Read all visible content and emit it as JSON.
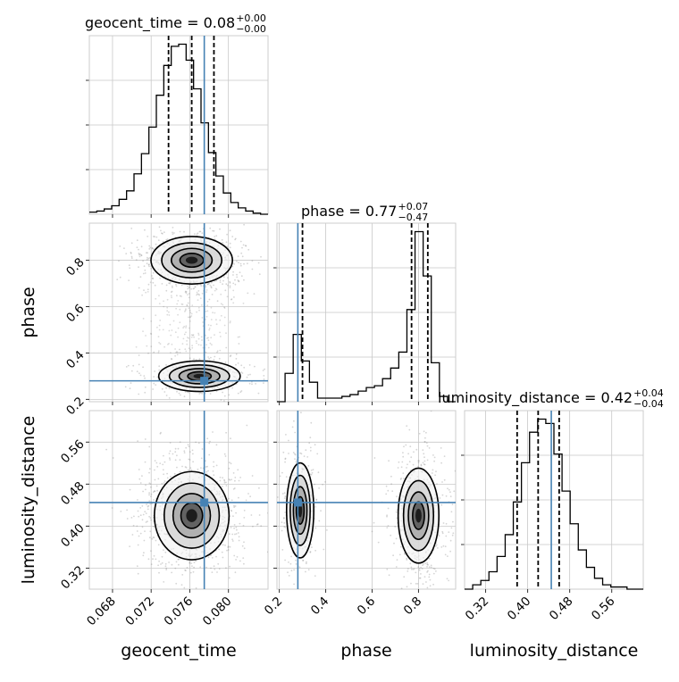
{
  "chart_data": {
    "type": "corner",
    "parameters": [
      "geocent_time",
      "phase",
      "luminosity_distance"
    ],
    "truths": {
      "geocent_time": 0.0775,
      "phase": 0.28,
      "luminosity_distance": 0.445
    },
    "panel_titles": [
      {
        "param": "geocent_time",
        "text": "geocent_time = 0.08",
        "plus": "+0.00",
        "minus": "−0.00"
      },
      {
        "param": "phase",
        "text": "phase = 0.77",
        "plus": "+0.07",
        "minus": "−0.47"
      },
      {
        "param": "luminosity_distance",
        "text": "luminosity_distance = 0.42",
        "plus": "+0.04",
        "minus": "−0.04"
      }
    ],
    "axes": {
      "geocent_time": {
        "label": "geocent_time",
        "range": [
          0.0656,
          0.0841
        ],
        "ticks": [
          0.068,
          0.072,
          0.076,
          0.08
        ],
        "tick_labels": [
          "0.068",
          "0.072",
          "0.076",
          "0.080"
        ]
      },
      "phase": {
        "label": "phase",
        "range": [
          0.19,
          0.96
        ],
        "ticks": [
          0.2,
          0.4,
          0.6,
          0.8
        ],
        "tick_labels": [
          "0.2",
          "0.4",
          "0.6",
          "0.8"
        ]
      },
      "luminosity_distance": {
        "label": "luminosity_distance",
        "range": [
          0.28,
          0.62
        ],
        "ticks": [
          0.32,
          0.4,
          0.48,
          0.56
        ],
        "tick_labels": [
          "0.32",
          "0.40",
          "0.48",
          "0.56"
        ]
      }
    },
    "histograms": {
      "geocent_time": {
        "edges_start": 0.0656,
        "edges_end": 0.0841,
        "counts": [
          2,
          3,
          5,
          8,
          14,
          22,
          38,
          57,
          82,
          112,
          140,
          158,
          160,
          145,
          118,
          86,
          58,
          36,
          20,
          11,
          6,
          3,
          1,
          0
        ],
        "quantiles": [
          0.0738,
          0.0762,
          0.0785
        ]
      },
      "phase": {
        "edges_start": 0.19,
        "edges_end": 0.96,
        "counts": [
          0,
          16,
          38,
          23,
          11,
          2,
          2,
          2,
          3,
          4,
          6,
          8,
          9,
          13,
          19,
          28,
          52,
          96,
          71,
          22,
          3,
          0
        ],
        "quantiles": [
          0.3,
          0.77,
          0.84
        ]
      },
      "luminosity_distance": {
        "edges_start": 0.28,
        "edges_end": 0.62,
        "counts": [
          0,
          2,
          4,
          8,
          15,
          25,
          40,
          58,
          72,
          78,
          76,
          62,
          45,
          30,
          18,
          10,
          5,
          2,
          1,
          1,
          0,
          0
        ],
        "quantiles": [
          0.38,
          0.42,
          0.46
        ]
      }
    },
    "modes_2d": {
      "phase_vs_geocent_time": [
        {
          "x": 0.0762,
          "y": 0.8,
          "weight": 0.65
        },
        {
          "x": 0.077,
          "y": 0.3,
          "weight": 0.35
        }
      ],
      "luminosity_distance_vs_geocent_time": [
        {
          "x": 0.0762,
          "y": 0.42,
          "weight": 1.0
        }
      ],
      "luminosity_distance_vs_phase": [
        {
          "x": 0.29,
          "y": 0.43,
          "weight": 0.35
        },
        {
          "x": 0.8,
          "y": 0.42,
          "weight": 0.65
        }
      ]
    },
    "grid": true,
    "colors": {
      "truth": "#4682b4",
      "contour": "#000000",
      "hist": "#000000",
      "grid": "#c8c8c8"
    }
  }
}
